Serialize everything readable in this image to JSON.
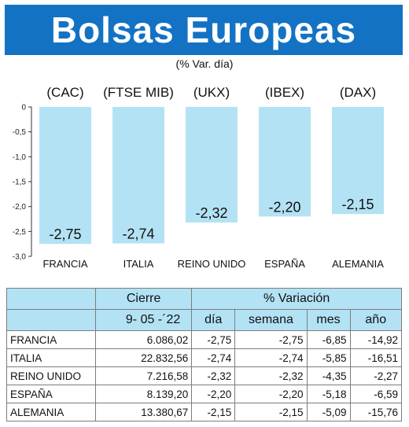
{
  "title": "Bolsas Europeas",
  "subtitle": "(% Var. día)",
  "colors": {
    "title_bg": "#1472c4",
    "bar": "#b3e2f4",
    "table_header": "#b3e2f4"
  },
  "chart_data": {
    "type": "bar",
    "categories": [
      "FRANCIA",
      "ITALIA",
      "REINO UNIDO",
      "ESPAÑA",
      "ALEMANIA"
    ],
    "index_codes": [
      "(CAC)",
      "(FTSE MIB)",
      "(UKX)",
      "(IBEX)",
      "(DAX)"
    ],
    "values": [
      -2.75,
      -2.74,
      -2.32,
      -2.2,
      -2.15
    ],
    "value_labels": [
      "-2,75",
      "-2,74",
      "-2,32",
      "-2,20",
      "-2,15"
    ],
    "ylim": [
      -3.0,
      0
    ],
    "yticks": [
      "0",
      "-0,5",
      "-1,0",
      "-1,5",
      "-2,0",
      "-2,5",
      "-3,0"
    ],
    "grid": false
  },
  "table": {
    "header_cierre": "Cierre",
    "header_variacion": "% Variación",
    "date": "9- 05 -´22",
    "subheaders": [
      "día",
      "semana",
      "mes",
      "año"
    ],
    "rows": [
      {
        "name": "FRANCIA",
        "cierre": "6.086,02",
        "dia": "-2,75",
        "semana": "-2,75",
        "mes": "-6,85",
        "anio": "-14,92"
      },
      {
        "name": "ITALIA",
        "cierre": "22.832,56",
        "dia": "-2,74",
        "semana": "-2,74",
        "mes": "-5,85",
        "anio": "-16,51"
      },
      {
        "name": "REINO UNIDO",
        "cierre": "7.216,58",
        "dia": "-2,32",
        "semana": "-2,32",
        "mes": "-4,35",
        "anio": "-2,27"
      },
      {
        "name": "ESPAÑA",
        "cierre": "8.139,20",
        "dia": "-2,20",
        "semana": "-2,20",
        "mes": "-5,18",
        "anio": "-6,59"
      },
      {
        "name": "ALEMANIA",
        "cierre": "13.380,67",
        "dia": "-2,15",
        "semana": "-2,15",
        "mes": "-5,09",
        "anio": "-15,76"
      }
    ]
  }
}
